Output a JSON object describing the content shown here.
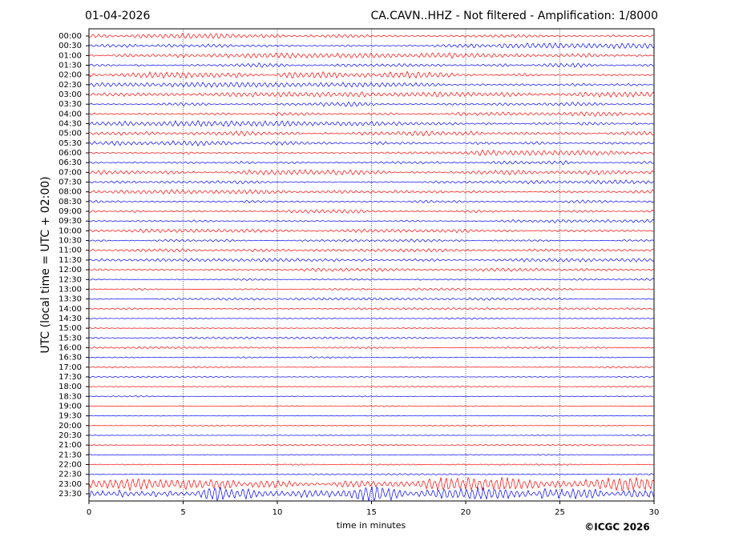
{
  "chart_data": {
    "type": "helicorder",
    "title_left": "01-04-2026",
    "title_right": "CA.CAVN..HHZ - Not filtered - Amplification: 1/8000",
    "ylabel": "UTC (local time = UTC + 02:00)",
    "xlabel": "time in minutes",
    "credit": "©ICGC 2026",
    "categories": [
      "00:00",
      "00:30",
      "01:00",
      "01:30",
      "02:00",
      "02:30",
      "03:00",
      "03:30",
      "04:00",
      "04:30",
      "05:00",
      "05:30",
      "06:00",
      "06:30",
      "07:00",
      "07:30",
      "08:00",
      "08:30",
      "09:00",
      "09:30",
      "10:00",
      "10:30",
      "11:00",
      "11:30",
      "12:00",
      "12:30",
      "13:00",
      "13:30",
      "14:00",
      "14:30",
      "15:00",
      "15:30",
      "16:00",
      "16:30",
      "17:00",
      "17:30",
      "18:00",
      "18:30",
      "19:00",
      "19:30",
      "20:00",
      "20:30",
      "21:00",
      "21:30",
      "22:00",
      "22:30",
      "23:00",
      "23:30"
    ],
    "colors": [
      "#ff0000",
      "#0000ff"
    ],
    "amplitudes": [
      0.3,
      0.3,
      0.3,
      0.3,
      0.4,
      0.3,
      0.3,
      0.3,
      0.3,
      0.35,
      0.3,
      0.3,
      0.3,
      0.3,
      0.3,
      0.25,
      0.25,
      0.25,
      0.25,
      0.2,
      0.2,
      0.2,
      0.2,
      0.2,
      0.2,
      0.15,
      0.15,
      0.15,
      0.12,
      0.12,
      0.12,
      0.12,
      0.12,
      0.1,
      0.1,
      0.1,
      0.08,
      0.08,
      0.08,
      0.08,
      0.08,
      0.08,
      0.08,
      0.08,
      0.08,
      0.1,
      0.8,
      1.2
    ],
    "xlim": [
      0,
      30
    ],
    "xticks": [
      0,
      5,
      10,
      15,
      20,
      25,
      30
    ],
    "grid": true
  }
}
